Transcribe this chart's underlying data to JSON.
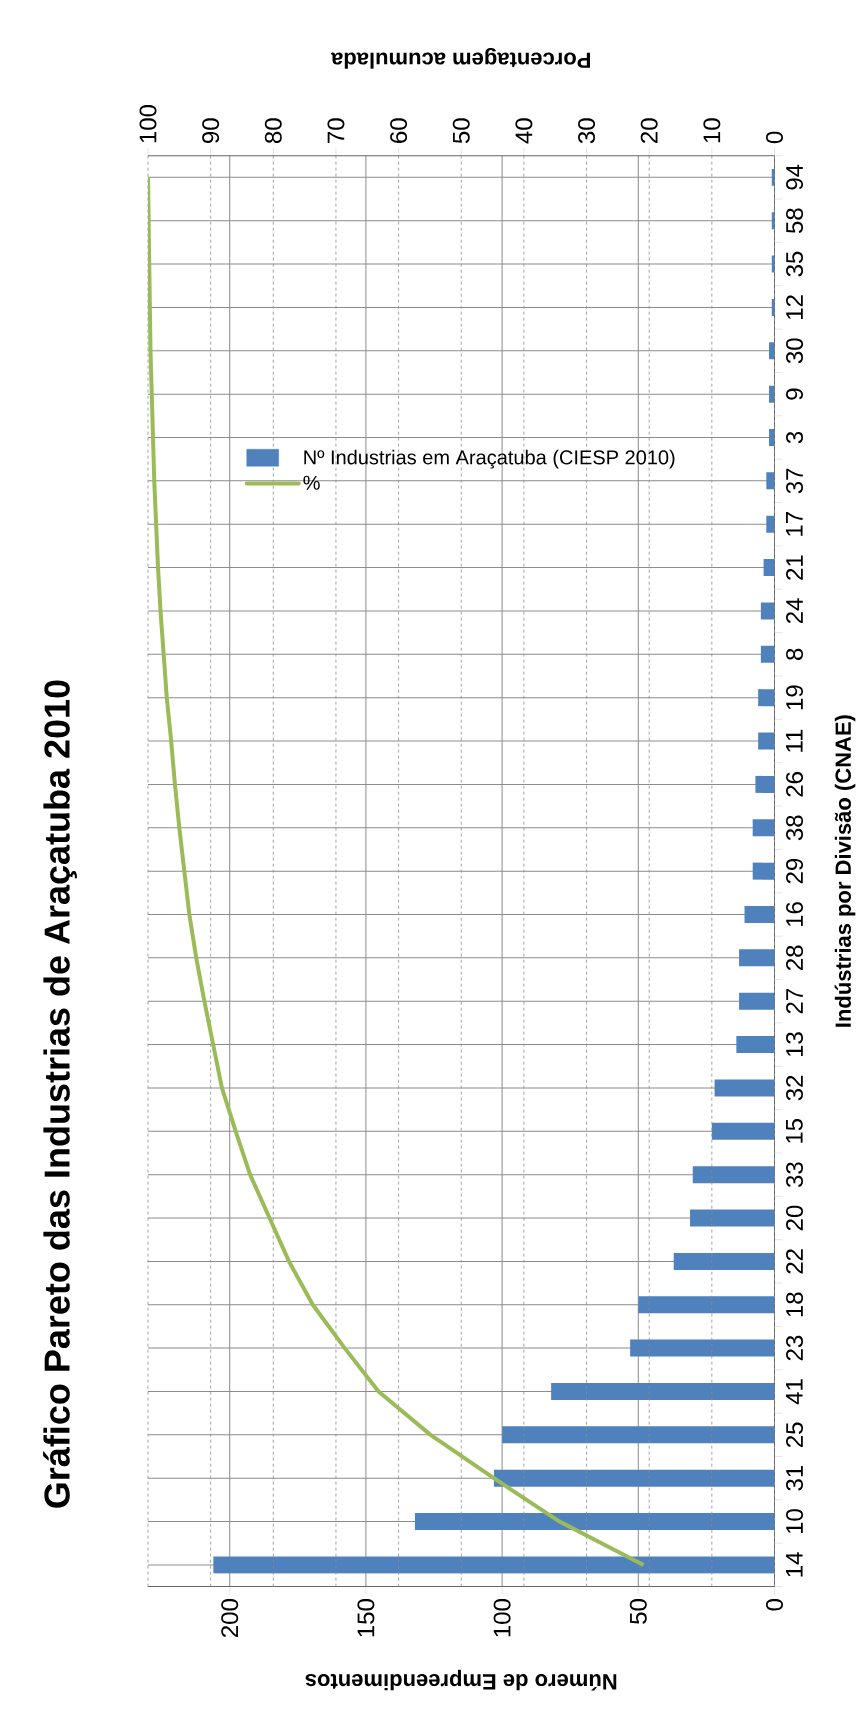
{
  "chart_data": {
    "type": "bar",
    "orientation": "horizontal",
    "title": "Gráfico Pareto das Industrias de Araçatuba 2010",
    "xlabel": "Número de Empreendimentos",
    "ylabel": "Indústrias por Divisão (CNAE)",
    "x2label": "Porcentagem acumulada",
    "categories": [
      "94",
      "58",
      "35",
      "12",
      "30",
      "9",
      "3",
      "37",
      "17",
      "21",
      "24",
      "8",
      "19",
      "11",
      "26",
      "38",
      "29",
      "16",
      "28",
      "27",
      "13",
      "32",
      "15",
      "33",
      "20",
      "22",
      "18",
      "23",
      "41",
      "25",
      "31",
      "10",
      "14"
    ],
    "series": [
      {
        "name": "Nº Industrias em Araçatuba (CIESP 2010)",
        "color": "#4f81bd",
        "values": [
          1,
          1,
          1,
          1,
          2,
          2,
          2,
          3,
          3,
          4,
          5,
          5,
          6,
          6,
          7,
          8,
          8,
          11,
          13,
          13,
          14,
          22,
          23,
          30,
          31,
          37,
          50,
          53,
          82,
          100,
          103,
          132,
          206
        ]
      },
      {
        "name": "%",
        "type": "line",
        "axis": "x2",
        "color": "#9bbb59",
        "values": [
          100,
          99.9,
          99.8,
          99.7,
          99.6,
          99.4,
          99.2,
          99.0,
          98.7,
          98.4,
          98.0,
          97.5,
          97.0,
          96.3,
          95.7,
          95.0,
          94.2,
          93.4,
          92.3,
          91.0,
          89.6,
          88.2,
          86.0,
          83.7,
          80.6,
          77.5,
          73.7,
          68.6,
          63.2,
          54.9,
          44.8,
          34.3,
          20.9
        ]
      }
    ],
    "xlim": [
      230,
      0
    ],
    "xticks": [
      0,
      50,
      100,
      150,
      200
    ],
    "x2lim": [
      100,
      0
    ],
    "x2ticks": [
      0,
      10,
      20,
      30,
      40,
      50,
      60,
      70,
      80,
      90,
      100
    ],
    "grid": true,
    "legend": "left",
    "marker": "none",
    "line_style": "solid"
  }
}
